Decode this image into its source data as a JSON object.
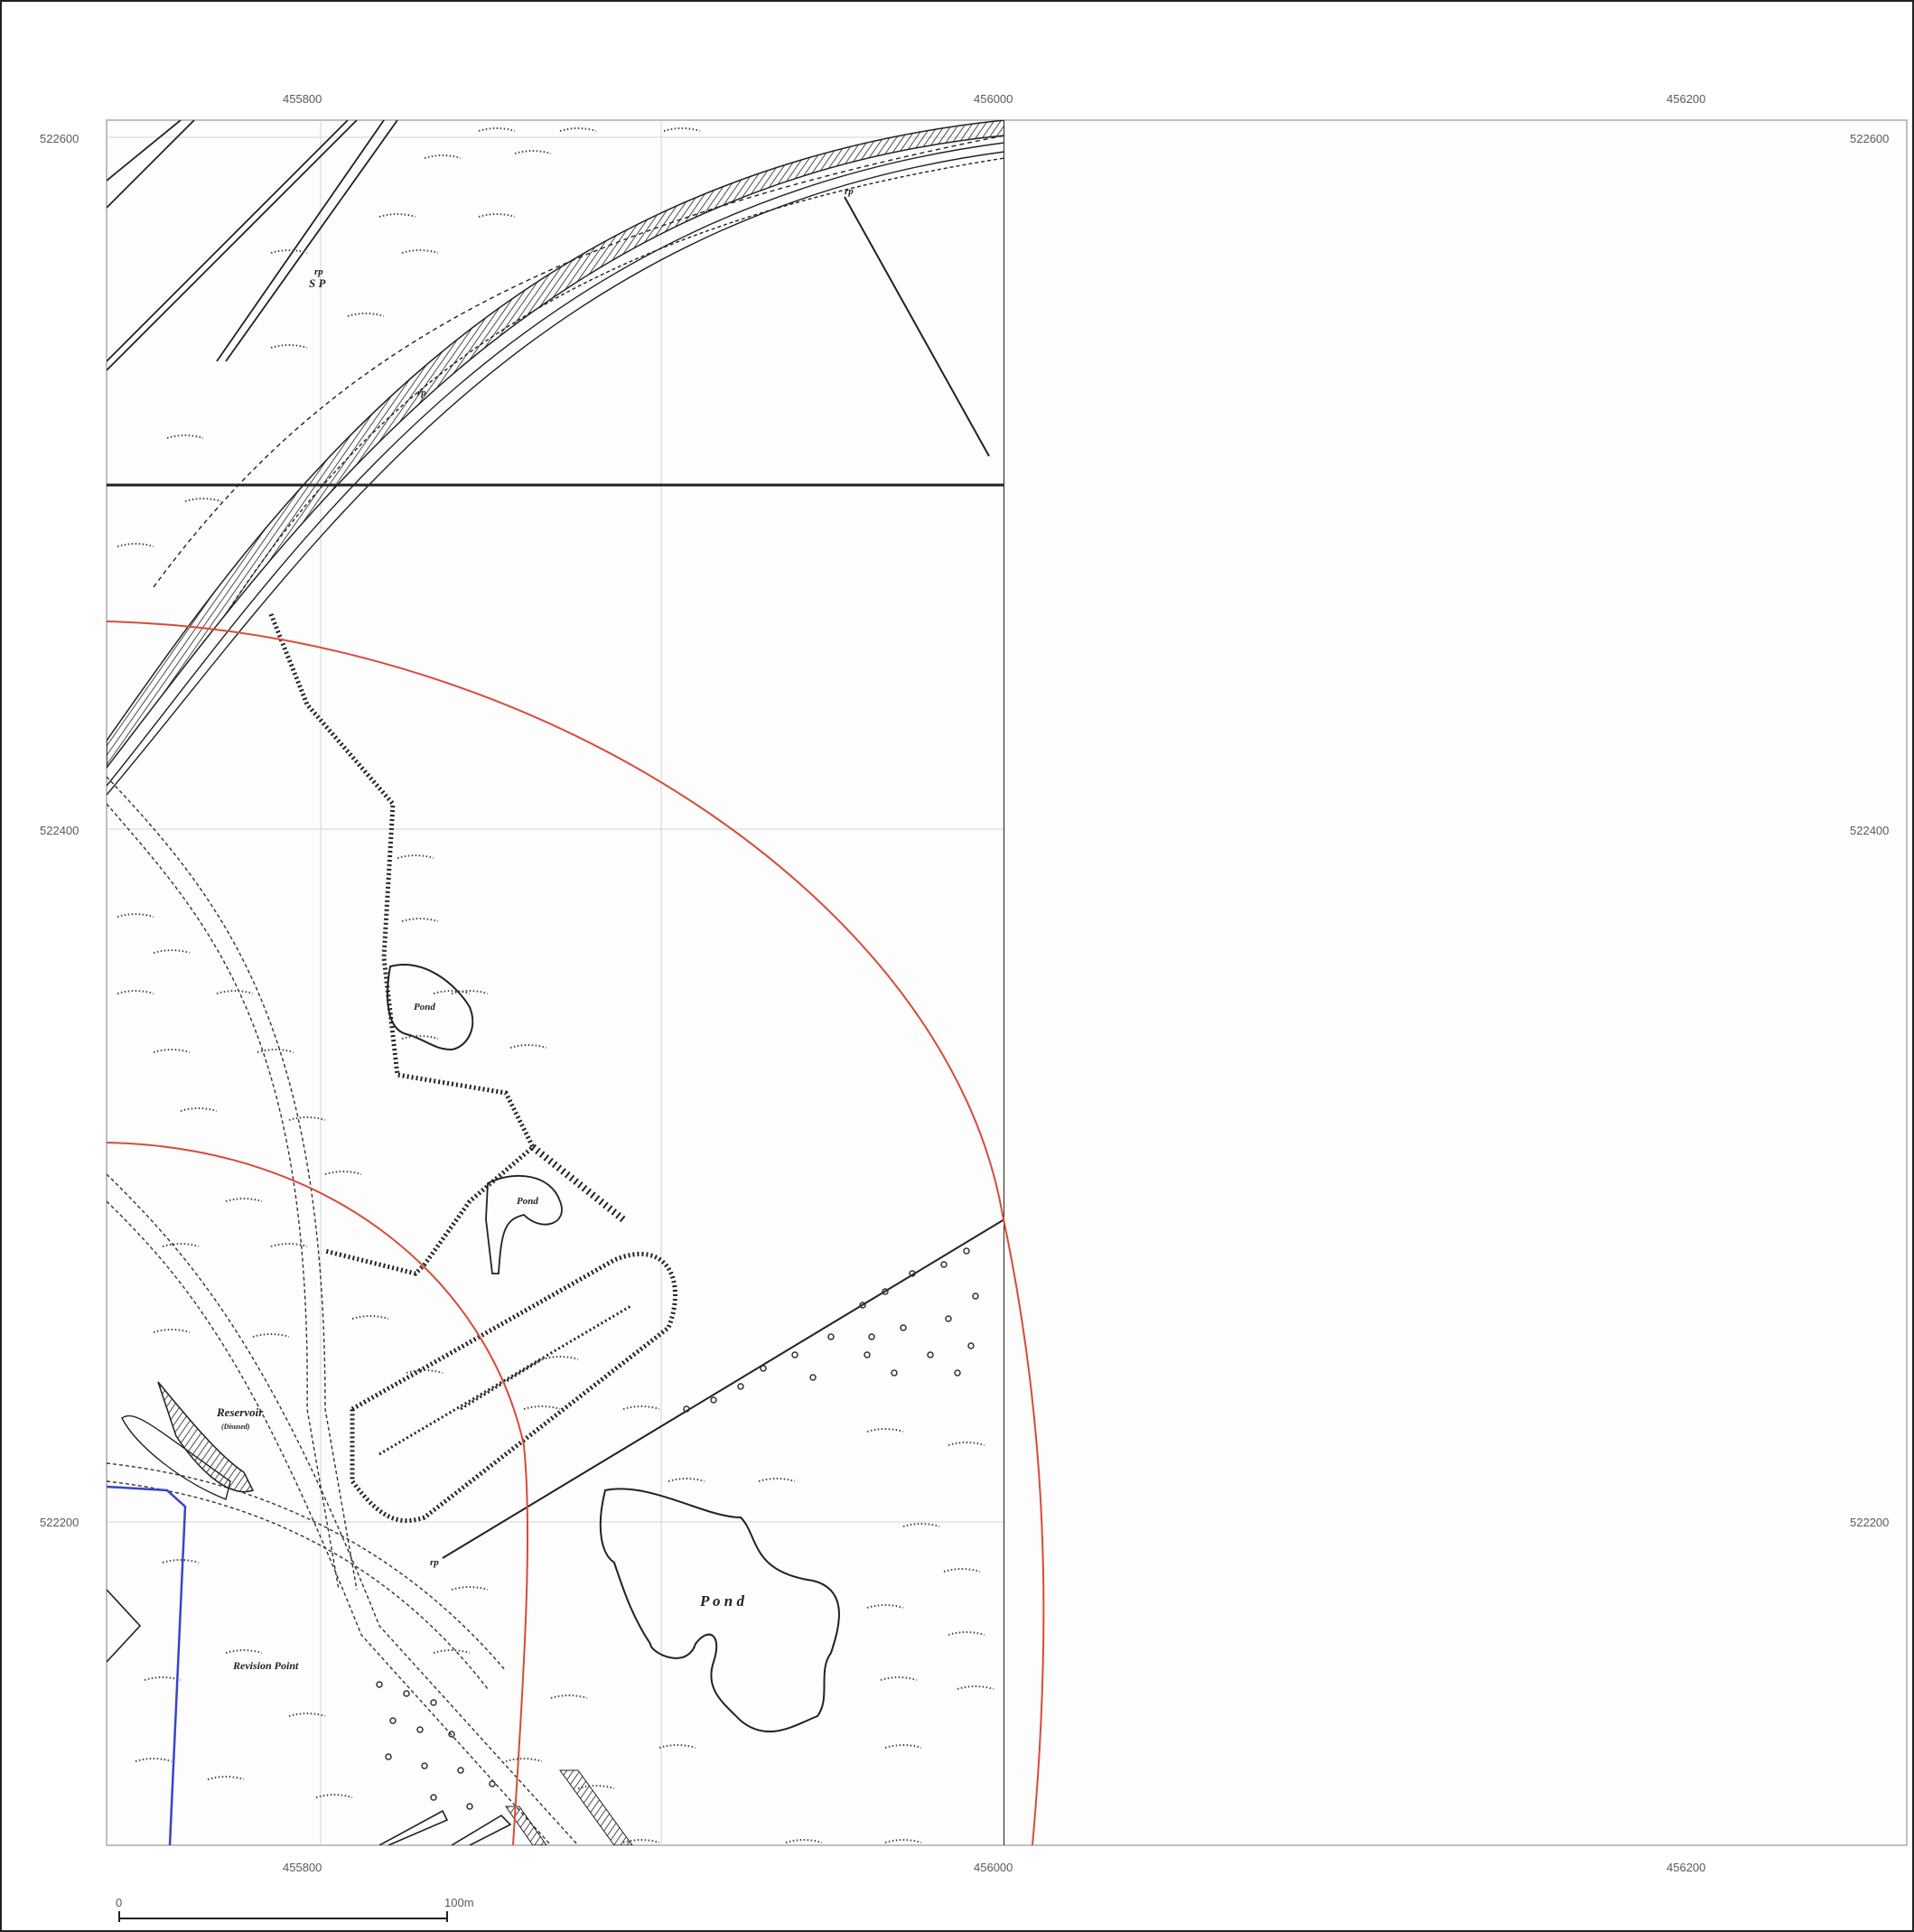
{
  "map": {
    "grid": {
      "eastings": [
        "455800",
        "456000",
        "456200"
      ],
      "northings": [
        "522600",
        "522400",
        "522200"
      ]
    },
    "labels": {
      "sp": "S P",
      "rp": "rp",
      "pond": "Pond",
      "pond_large": "P o n d",
      "reservoir": "Reservoir",
      "disused": "(Disused)",
      "revision_point": "Revision Point"
    },
    "scale_bar": {
      "start": "0",
      "end": "100m"
    },
    "colors": {
      "boundary_red": "#d94a3a",
      "boundary_blue": "#3a44c8",
      "linework": "#222222",
      "grid": "#bbbbbb"
    }
  }
}
